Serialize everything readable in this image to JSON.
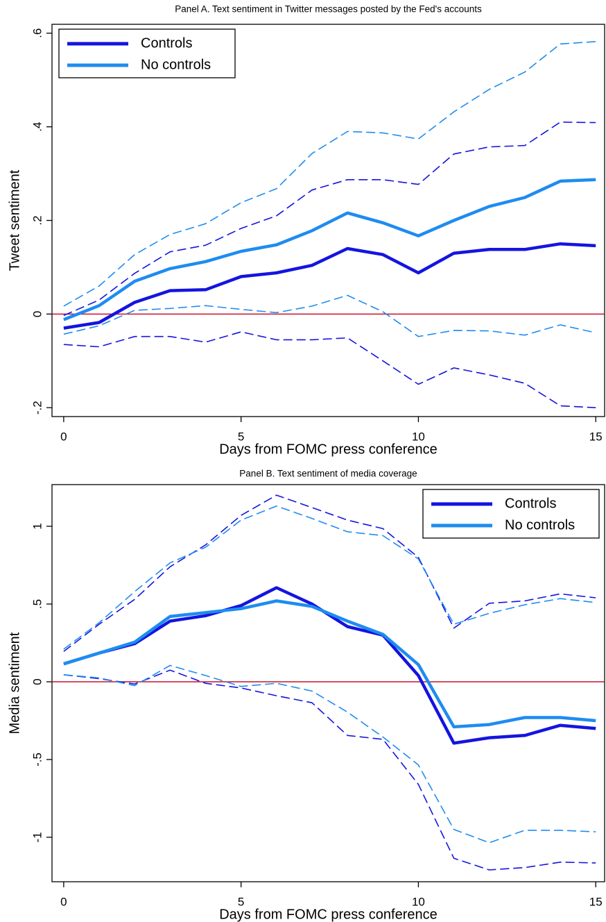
{
  "chart_data": [
    {
      "type": "line",
      "title": "Panel A. Text sentiment in Twitter messages posted by the Fed's accounts",
      "xlabel": "Days from FOMC press conference",
      "ylabel": "Tweet sentiment",
      "x": [
        0,
        1,
        2,
        3,
        4,
        5,
        6,
        7,
        8,
        9,
        10,
        11,
        12,
        13,
        14,
        15
      ],
      "xlim": [
        -0.33,
        15.25
      ],
      "xticks": [
        0,
        5,
        10,
        15
      ],
      "ylim": [
        -0.219,
        0.619
      ],
      "yticks": [
        {
          "value": -0.2,
          "label": "-.2"
        },
        0,
        {
          "value": 0.2,
          "label": ".2"
        },
        {
          "value": 0.4,
          "label": ".4"
        },
        {
          "value": 0.6,
          "label": ".6"
        }
      ],
      "refline": 0,
      "refline_color": "#c8102e",
      "legend": "upper left",
      "series": [
        {
          "name": "Controls",
          "color": "#1414e0",
          "values": [
            -0.03,
            -0.018,
            0.025,
            0.05,
            0.052,
            0.08,
            0.088,
            0.104,
            0.14,
            0.127,
            0.088,
            0.13,
            0.138,
            0.138,
            0.15,
            0.146
          ]
        },
        {
          "name": "No controls",
          "color": "#1e8cf0",
          "values": [
            -0.012,
            0.018,
            0.07,
            0.097,
            0.112,
            0.134,
            0.148,
            0.178,
            0.216,
            0.195,
            0.167,
            0.2,
            0.23,
            0.249,
            0.284,
            0.287
          ]
        },
        {
          "color": "#1414e0",
          "dashed": true,
          "values": [
            -0.003,
            0.03,
            0.087,
            0.133,
            0.147,
            0.183,
            0.21,
            0.265,
            0.287,
            0.287,
            0.277,
            0.342,
            0.357,
            0.36,
            0.41,
            0.409
          ]
        },
        {
          "color": "#1e8cf0",
          "dashed": true,
          "values": [
            0.017,
            0.06,
            0.127,
            0.17,
            0.193,
            0.238,
            0.268,
            0.343,
            0.39,
            0.387,
            0.374,
            0.432,
            0.48,
            0.517,
            0.577,
            0.582
          ]
        },
        {
          "color": "#1414e0",
          "dashed": true,
          "values": [
            -0.065,
            -0.07,
            -0.048,
            -0.048,
            -0.06,
            -0.038,
            -0.055,
            -0.055,
            -0.051,
            -0.1,
            -0.15,
            -0.115,
            -0.13,
            -0.148,
            -0.196,
            -0.2
          ]
        },
        {
          "color": "#1e8cf0",
          "dashed": true,
          "values": [
            -0.043,
            -0.025,
            0.008,
            0.012,
            0.018,
            0.01,
            0.003,
            0.017,
            0.04,
            0.005,
            -0.048,
            -0.035,
            -0.036,
            -0.045,
            -0.023,
            -0.04
          ]
        }
      ]
    },
    {
      "type": "line",
      "title": "Panel B. Text sentiment of media coverage",
      "xlabel": "Days from FOMC press conference",
      "ylabel": "Media sentiment",
      "x": [
        0,
        1,
        2,
        3,
        4,
        5,
        6,
        7,
        8,
        9,
        10,
        11,
        12,
        13,
        14,
        15
      ],
      "xlim": [
        -0.33,
        15.25
      ],
      "xticks": [
        0,
        5,
        10,
        15
      ],
      "ylim": [
        -1.286,
        1.268
      ],
      "yticks": [
        {
          "value": -1,
          "label": "-1"
        },
        {
          "value": -0.5,
          "label": "-.5"
        },
        0,
        {
          "value": 0.5,
          "label": ".5"
        },
        1
      ],
      "refline": 0,
      "refline_color": "#c8102e",
      "legend": "upper right",
      "series": [
        {
          "name": "Controls",
          "color": "#1414e0",
          "values": [
            0.115,
            0.185,
            0.245,
            0.39,
            0.425,
            0.49,
            0.605,
            0.5,
            0.355,
            0.3,
            0.04,
            -0.395,
            -0.36,
            -0.345,
            -0.28,
            -0.3
          ]
        },
        {
          "name": "No controls",
          "color": "#1e8cf0",
          "values": [
            0.115,
            0.185,
            0.255,
            0.42,
            0.445,
            0.47,
            0.52,
            0.485,
            0.39,
            0.305,
            0.11,
            -0.29,
            -0.275,
            -0.23,
            -0.23,
            -0.25
          ]
        },
        {
          "color": "#1414e0",
          "dashed": true,
          "values": [
            0.195,
            0.37,
            0.53,
            0.74,
            0.88,
            1.07,
            1.2,
            1.12,
            1.04,
            0.985,
            0.8,
            0.345,
            0.505,
            0.52,
            0.565,
            0.54
          ]
        },
        {
          "color": "#1e8cf0",
          "dashed": true,
          "values": [
            0.21,
            0.38,
            0.58,
            0.765,
            0.865,
            1.04,
            1.13,
            1.05,
            0.965,
            0.94,
            0.79,
            0.37,
            0.44,
            0.495,
            0.535,
            0.51
          ]
        },
        {
          "color": "#1414e0",
          "dashed": true,
          "values": [
            0.045,
            0.02,
            -0.015,
            0.075,
            -0.01,
            -0.04,
            -0.09,
            -0.135,
            -0.345,
            -0.37,
            -0.66,
            -1.135,
            -1.21,
            -1.195,
            -1.16,
            -1.165
          ]
        },
        {
          "color": "#1e8cf0",
          "dashed": true,
          "values": [
            0.045,
            0.025,
            -0.025,
            0.105,
            0.04,
            -0.03,
            -0.01,
            -0.06,
            -0.195,
            -0.355,
            -0.535,
            -0.95,
            -1.035,
            -0.955,
            -0.955,
            -0.965
          ]
        }
      ]
    }
  ]
}
